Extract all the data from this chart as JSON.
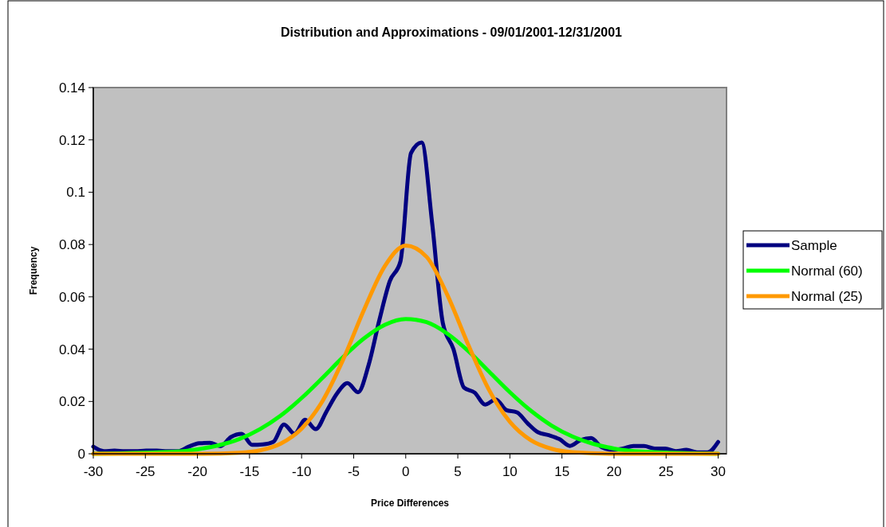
{
  "chart_data": {
    "type": "line",
    "title": "Distribution and Approximations - 09/01/2001-12/31/2001",
    "xlabel": "Price Differences",
    "ylabel": "Frequency",
    "xlim": [
      -30,
      30.8
    ],
    "ylim": [
      0,
      0.14
    ],
    "xticks": [
      -30,
      -25,
      -20,
      -15,
      -10,
      -5,
      0,
      5,
      10,
      15,
      20,
      25,
      30
    ],
    "yticks": [
      0,
      0.02,
      0.04,
      0.06,
      0.08,
      0.1,
      0.12,
      0.14
    ],
    "grid": false,
    "legend": "right",
    "marker": "none",
    "line_style": "solid",
    "series": [
      {
        "name": "Sample",
        "color": "#000080",
        "x": [
          -30,
          -28.98,
          -27.97,
          -26.95,
          -25.93,
          -24.92,
          -23.9,
          -22.88,
          -21.86,
          -20.85,
          -19.83,
          -18.81,
          -17.8,
          -16.78,
          -15.76,
          -14.75,
          -13.73,
          -12.71,
          -11.69,
          -10.68,
          -9.66,
          -8.64,
          -7.63,
          -6.61,
          -5.59,
          -4.58,
          -3.56,
          -2.54,
          -1.53,
          -0.51,
          0.51,
          1.53,
          2.54,
          3.56,
          4.58,
          5.59,
          6.61,
          7.63,
          8.64,
          9.66,
          10.68,
          11.69,
          12.71,
          13.73,
          14.75,
          15.76,
          16.78,
          17.8,
          18.81,
          19.83,
          20.85,
          21.86,
          22.88,
          23.9,
          24.92,
          25.93,
          26.95,
          27.97,
          28.98,
          30
        ],
        "values": [
          0.0027,
          0.001,
          0.0012,
          0.001,
          0.001,
          0.0012,
          0.0012,
          0.001,
          0.001,
          0.0027,
          0.004,
          0.0042,
          0.0029,
          0.0064,
          0.0076,
          0.0034,
          0.0036,
          0.0046,
          0.0112,
          0.0076,
          0.013,
          0.0094,
          0.016,
          0.023,
          0.027,
          0.0235,
          0.034,
          0.051,
          0.066,
          0.0735,
          0.115,
          0.119,
          0.088,
          0.05,
          0.04,
          0.0253,
          0.0234,
          0.0188,
          0.0208,
          0.0167,
          0.0158,
          0.0117,
          0.0082,
          0.0071,
          0.0056,
          0.003,
          0.0052,
          0.006,
          0.0025,
          0.0015,
          0.002,
          0.003,
          0.003,
          0.002,
          0.002,
          0.001,
          0.0015,
          0.0005,
          0.0005,
          0.0045
        ]
      },
      {
        "name": "Normal (60)",
        "color": "#00ff00",
        "x": [
          -30,
          -22,
          -20,
          -18,
          -16,
          -14,
          -12,
          -10,
          -8,
          -6,
          -4,
          -2,
          0,
          2,
          4,
          6,
          8,
          10,
          12,
          14,
          16,
          18,
          20,
          22,
          30
        ],
        "values": [
          0.0,
          0.0008,
          0.0017,
          0.0032,
          0.0056,
          0.0094,
          0.0146,
          0.0213,
          0.029,
          0.037,
          0.0441,
          0.0493,
          0.0515,
          0.0503,
          0.0459,
          0.0393,
          0.0314,
          0.0235,
          0.0165,
          0.0108,
          0.0066,
          0.0038,
          0.002,
          0.001,
          0.0
        ]
      },
      {
        "name": "Normal (25)",
        "color": "#ff9900",
        "x": [
          -30,
          -20,
          -16,
          -14,
          -12,
          -10,
          -8,
          -6,
          -4,
          -2,
          0,
          2,
          4,
          6,
          8,
          10,
          12,
          14,
          16,
          20,
          30
        ],
        "values": [
          0.0,
          0.0,
          0.0004,
          0.0013,
          0.0039,
          0.0096,
          0.0201,
          0.0361,
          0.0551,
          0.0718,
          0.0796,
          0.0753,
          0.0607,
          0.0417,
          0.0244,
          0.0122,
          0.0052,
          0.0019,
          0.0006,
          0.0,
          0.0
        ]
      }
    ]
  }
}
